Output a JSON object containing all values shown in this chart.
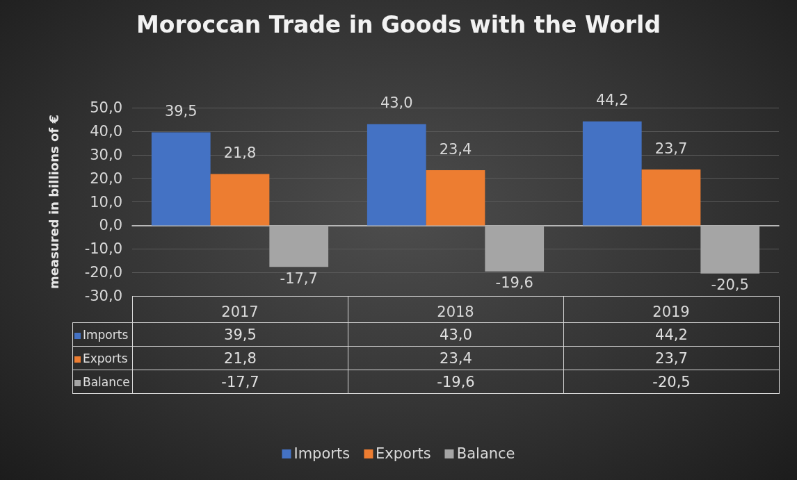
{
  "chart_data": {
    "type": "bar",
    "title": "Moroccan Trade in Goods with the World",
    "ylabel": "measured in billions of €",
    "categories": [
      "2017",
      "2018",
      "2019"
    ],
    "series": [
      {
        "name": "Imports",
        "color": "#4472c4",
        "values": [
          39.5,
          43.0,
          44.2
        ],
        "value_labels": [
          "39,5",
          "43,0",
          "44,2"
        ]
      },
      {
        "name": "Exports",
        "color": "#ed7d31",
        "values": [
          21.8,
          23.4,
          23.7
        ],
        "value_labels": [
          "21,8",
          "23,4",
          "23,7"
        ]
      },
      {
        "name": "Balance",
        "color": "#a5a5a5",
        "values": [
          -17.7,
          -19.6,
          -20.5
        ],
        "value_labels": [
          "-17,7",
          "-19,6",
          "-20,5"
        ]
      }
    ],
    "ylim": [
      -30,
      50
    ],
    "yticks": [
      {
        "value": -30,
        "label": "-30,0"
      },
      {
        "value": -20,
        "label": "-20,0"
      },
      {
        "value": -10,
        "label": "-10,0"
      },
      {
        "value": 0,
        "label": "0,0"
      },
      {
        "value": 10,
        "label": "10,0"
      },
      {
        "value": 20,
        "label": "20,0"
      },
      {
        "value": 30,
        "label": "30,0"
      },
      {
        "value": 40,
        "label": "40,0"
      },
      {
        "value": 50,
        "label": "50,0"
      }
    ],
    "grid": "y",
    "legend": "bottom"
  }
}
